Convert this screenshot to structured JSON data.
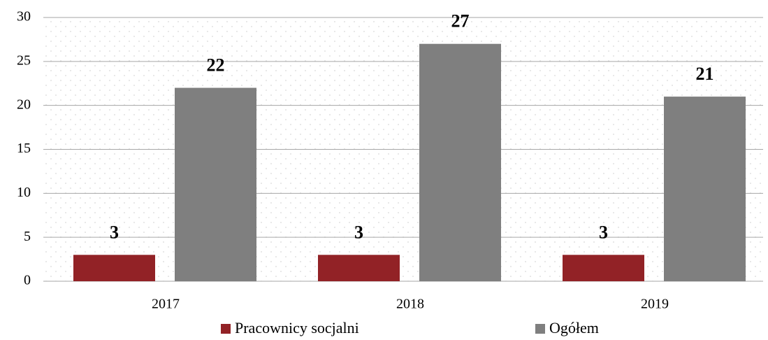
{
  "chart_data": {
    "type": "bar",
    "categories": [
      "2017",
      "2018",
      "2019"
    ],
    "series": [
      {
        "name": "Pracownicy socjalni",
        "color": "#922226",
        "values": [
          3,
          3,
          3
        ]
      },
      {
        "name": "Ogółem",
        "color": "#7f7f7f",
        "values": [
          22,
          27,
          21
        ]
      }
    ],
    "ylim": [
      0,
      30
    ],
    "yticks": [
      0,
      5,
      10,
      15,
      20,
      25,
      30
    ],
    "grid": true,
    "legend": "bottom"
  }
}
